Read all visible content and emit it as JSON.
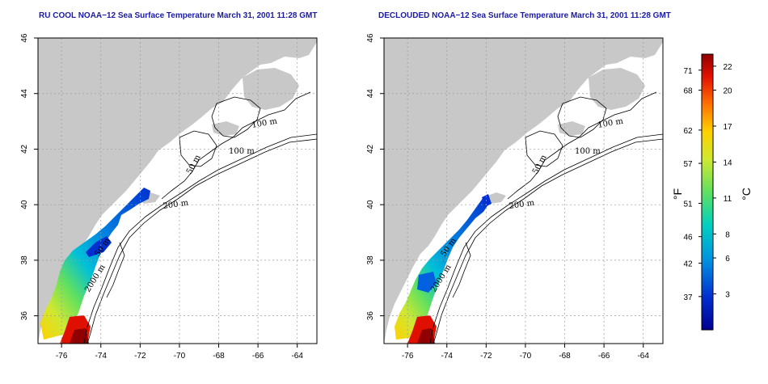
{
  "chart_data": [
    {
      "type": "heatmap",
      "title": "RU COOL NOAA−12 Sea Surface Temperature March 31, 2001 11:28 GMT",
      "x_ticks": [
        "-76",
        "-74",
        "-72",
        "-70",
        "-68",
        "-66",
        "-64"
      ],
      "y_ticks": [
        "36",
        "38",
        "40",
        "42",
        "44",
        "46"
      ],
      "xlim": [
        -77.2,
        -63.0
      ],
      "ylim": [
        35.0,
        46.0
      ],
      "grid": true,
      "contour_labels": [
        "100 m",
        "100 m",
        "50 m",
        "200 m",
        "50 m",
        "2000 m"
      ]
    },
    {
      "type": "heatmap",
      "title": "DECLOUDED NOAA−12 Sea Surface Temperature March 31, 2001 11:28 GMT",
      "x_ticks": [
        "-76",
        "-74",
        "-72",
        "-70",
        "-68",
        "-66",
        "-64"
      ],
      "y_ticks": [
        "36",
        "38",
        "40",
        "42",
        "44",
        "46"
      ],
      "xlim": [
        -77.2,
        -63.0
      ],
      "ylim": [
        35.0,
        46.0
      ],
      "grid": true,
      "contour_labels": [
        "100 m",
        "100 m",
        "50 m",
        "200 m",
        "50 m",
        "2000 m"
      ]
    }
  ],
  "colorbar": {
    "fahrenheit_ticks": [
      "71",
      "68",
      "62",
      "57",
      "51",
      "46",
      "42",
      "37"
    ],
    "celsius_ticks": [
      "22",
      "20",
      "17",
      "14",
      "11",
      "8",
      "6",
      "3"
    ],
    "fahrenheit_label": "°F",
    "celsius_label": "°C",
    "range_celsius": [
      0,
      23
    ]
  },
  "colors": {
    "land": "#c8c8c8",
    "title": "#1a1aa6",
    "scale": [
      "#000090",
      "#0030d0",
      "#0090e0",
      "#00d0c0",
      "#60e060",
      "#d0e830",
      "#ffd000",
      "#ff7000",
      "#e01000",
      "#900000"
    ]
  }
}
